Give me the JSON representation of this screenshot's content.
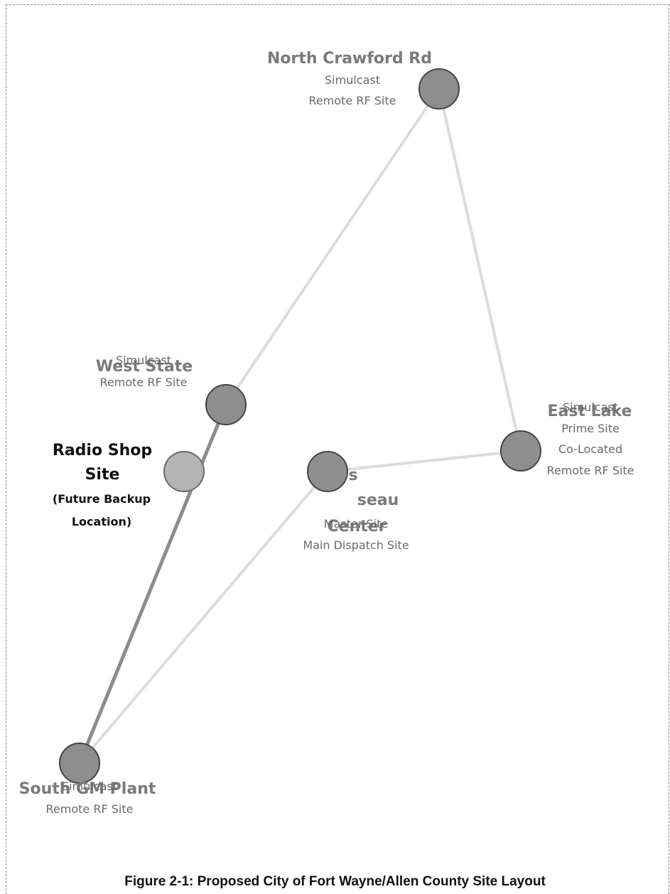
{
  "caption": "Figure 2-1: Proposed City of Fort Wayne/Allen County Site Layout",
  "colors": {
    "node_fill": "#8e8e8e",
    "node_stroke": "#444444",
    "radio_node_fill": "#b4b4b4",
    "link_light": "#dcdcdc",
    "link_dark": "#8c8c8c"
  },
  "sites": {
    "north_crawford": {
      "name": "North Crawford Rd",
      "line1": "Simulcast",
      "line2": "Remote RF Site"
    },
    "west_state": {
      "name": "West State",
      "line1": "Simulcast",
      "line2": "Remote RF Site"
    },
    "radio_shop": {
      "line1": "Radio Shop",
      "line2": "Site",
      "line3": "(Future Backup",
      "line4": "Location)"
    },
    "master": {
      "name_a": "s",
      "name_b": "seau",
      "name_c": "Center",
      "line1": "Master Site",
      "line2": "Main Dispatch Site"
    },
    "east_lake": {
      "name": "East Lake",
      "line1": "Simulcast",
      "line2": "Prime Site",
      "line3": "Co-Located",
      "line4": "Remote RF Site"
    },
    "south_gm": {
      "name": "South GM Plant",
      "line1": "Simulcast",
      "line2": "Remote RF Site"
    }
  }
}
